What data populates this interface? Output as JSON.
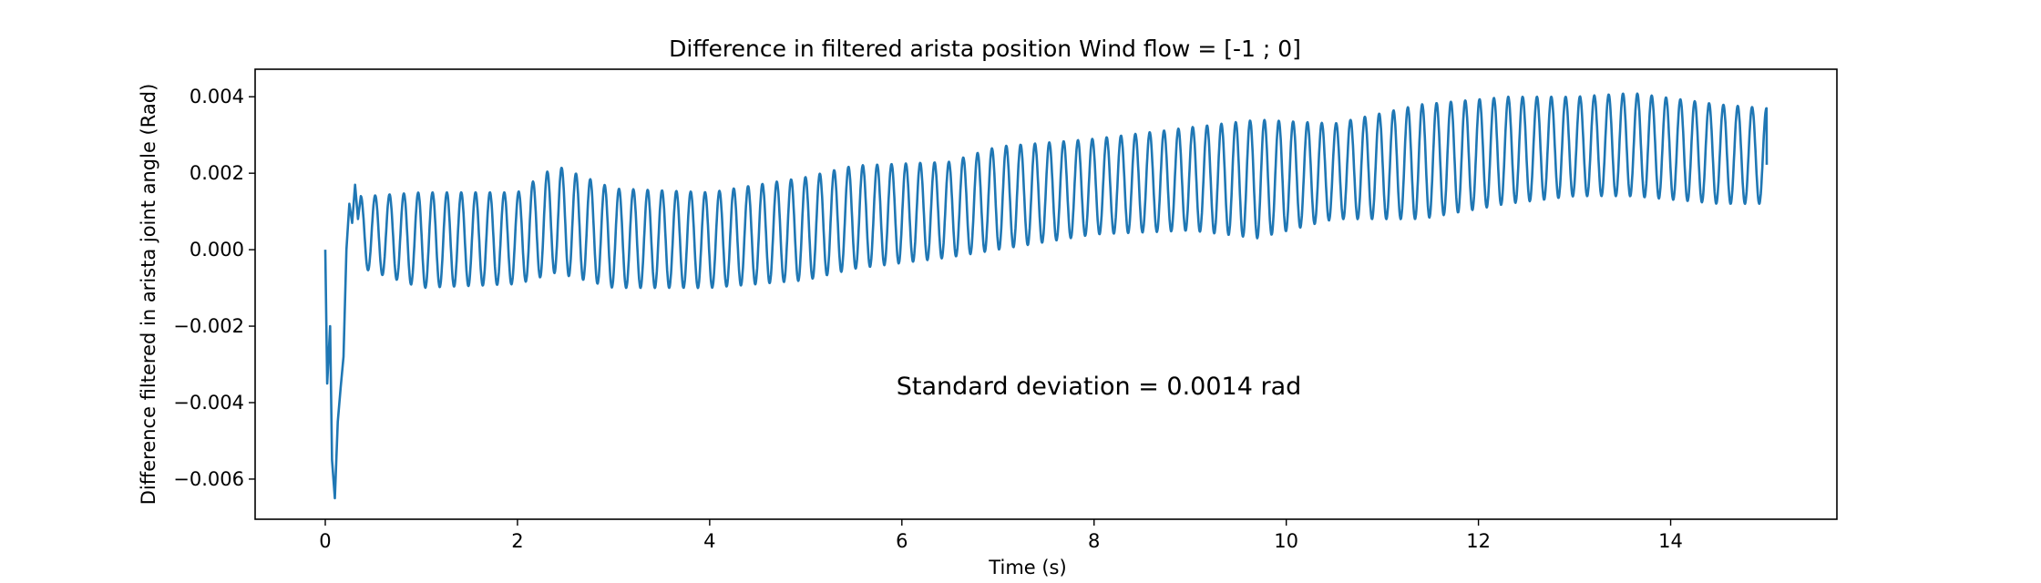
{
  "chart_data": {
    "type": "line",
    "title": "Difference in filtered arista position Wind flow = [-1 ; 0]",
    "xlabel": "Time (s)",
    "ylabel": "Difference filtered in arista joint angle (Rad)",
    "xlim": [
      -0.73,
      15.73
    ],
    "ylim": [
      -0.00705,
      0.00472
    ],
    "xticks": [
      0,
      2,
      4,
      6,
      8,
      10,
      12,
      14
    ],
    "xtick_labels": [
      "0",
      "2",
      "4",
      "6",
      "8",
      "10",
      "12",
      "14"
    ],
    "yticks": [
      0.004,
      0.002,
      0.0,
      -0.002,
      -0.004,
      -0.006
    ],
    "ytick_labels": [
      "0.004",
      "0.002",
      "0.000",
      "−0.002",
      "−0.004",
      "−0.006"
    ],
    "grid": false,
    "line_color": "#1f77b4",
    "annotation": {
      "text": "Standard deviation = 0.0014 rad",
      "x": 8.05,
      "y": -0.00378
    },
    "series": [
      {
        "signal_description": "oscillating difference signal, approx. 6.7 Hz",
        "frequency_hz": 6.7,
        "t_end": 15.0,
        "initial_transient": {
          "t": [
            0.0,
            0.02,
            0.05,
            0.07,
            0.1,
            0.13,
            0.16,
            0.19,
            0.22,
            0.25,
            0.28,
            0.31,
            0.34,
            0.37
          ],
          "y": [
            0.0,
            -0.0035,
            -0.002,
            -0.0055,
            -0.0065,
            -0.0045,
            -0.0036,
            -0.0028,
            0.0,
            0.0012,
            0.0007,
            0.0017,
            0.0008,
            0.0014
          ]
        },
        "envelope_upper": {
          "t": [
            0.4,
            1.0,
            2.0,
            2.4,
            3.0,
            4.0,
            5.0,
            5.5,
            6.5,
            7.0,
            8.0,
            9.0,
            9.7,
            10.5,
            11.4,
            12.3,
            13.0,
            13.6,
            14.5,
            15.0
          ],
          "y": [
            0.0014,
            0.0015,
            0.0015,
            0.0022,
            0.0016,
            0.0015,
            0.0019,
            0.0022,
            0.0023,
            0.0027,
            0.0029,
            0.0032,
            0.0034,
            0.0033,
            0.0038,
            0.004,
            0.004,
            0.0041,
            0.0038,
            0.0037
          ]
        },
        "envelope_lower": {
          "t": [
            0.4,
            1.0,
            2.0,
            2.4,
            3.0,
            4.0,
            5.0,
            5.5,
            6.5,
            7.0,
            8.0,
            9.0,
            9.7,
            10.5,
            11.4,
            12.3,
            13.0,
            13.6,
            14.5,
            15.0
          ],
          "y": [
            -0.0005,
            -0.001,
            -0.0009,
            -0.0006,
            -0.001,
            -0.001,
            -0.0008,
            -0.0005,
            -0.0002,
            0.0,
            0.0004,
            0.0005,
            0.0003,
            0.0008,
            0.0008,
            0.0012,
            0.0014,
            0.0014,
            0.0012,
            0.0012
          ]
        }
      }
    ]
  }
}
